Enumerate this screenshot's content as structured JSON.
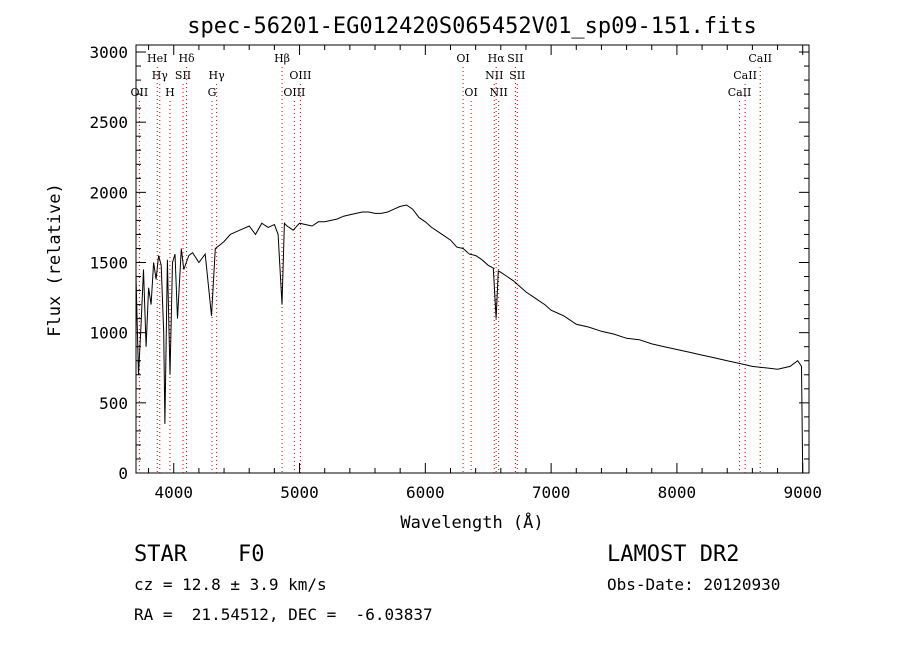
{
  "chart_data": {
    "type": "line",
    "title": "spec-56201-EG012420S065452V01_sp09-151.fits",
    "xlabel": "Wavelength (Å)",
    "ylabel": "Flux (relative)",
    "xlim": [
      3700,
      9050
    ],
    "ylim": [
      0,
      3050
    ],
    "x_ticks": [
      4000,
      5000,
      6000,
      7000,
      8000,
      9000
    ],
    "y_ticks": [
      0,
      500,
      1000,
      1500,
      2000,
      2500,
      3000
    ],
    "grid": false,
    "series": [
      {
        "x": [
          3700,
          3720,
          3740,
          3760,
          3780,
          3800,
          3820,
          3840,
          3860,
          3880,
          3900,
          3920,
          3930,
          3950,
          3970,
          3990,
          4010,
          4030,
          4060,
          4080,
          4100,
          4120,
          4150,
          4200,
          4250,
          4300,
          4330,
          4360,
          4400,
          4450,
          4500,
          4550,
          4600,
          4650,
          4700,
          4750,
          4800,
          4830,
          4861,
          4880,
          4900,
          4950,
          5000,
          5050,
          5100,
          5150,
          5200,
          5250,
          5300,
          5350,
          5400,
          5450,
          5500,
          5550,
          5600,
          5650,
          5700,
          5750,
          5800,
          5850,
          5900,
          5950,
          6000,
          6050,
          6100,
          6150,
          6200,
          6250,
          6300,
          6350,
          6400,
          6450,
          6500,
          6540,
          6563,
          6580,
          6600,
          6650,
          6700,
          6750,
          6800,
          6850,
          6900,
          6950,
          7000,
          7050,
          7100,
          7200,
          7300,
          7400,
          7500,
          7600,
          7700,
          7800,
          7900,
          8000,
          8100,
          8200,
          8300,
          8400,
          8500,
          8600,
          8700,
          8800,
          8900,
          8960,
          8990,
          9000
        ],
        "y": [
          1400,
          700,
          1050,
          1450,
          900,
          1320,
          1200,
          1500,
          1380,
          1550,
          1480,
          1000,
          350,
          1520,
          700,
          1500,
          1560,
          1100,
          1600,
          1450,
          1500,
          1550,
          1570,
          1500,
          1560,
          1120,
          1600,
          1620,
          1650,
          1700,
          1720,
          1740,
          1760,
          1700,
          1780,
          1750,
          1770,
          1700,
          1200,
          1780,
          1760,
          1730,
          1780,
          1770,
          1760,
          1790,
          1790,
          1800,
          1810,
          1830,
          1840,
          1850,
          1860,
          1860,
          1850,
          1850,
          1860,
          1880,
          1900,
          1910,
          1880,
          1820,
          1790,
          1750,
          1720,
          1690,
          1660,
          1610,
          1600,
          1560,
          1550,
          1520,
          1480,
          1460,
          1100,
          1440,
          1430,
          1400,
          1370,
          1330,
          1290,
          1260,
          1230,
          1200,
          1160,
          1140,
          1120,
          1060,
          1040,
          1010,
          990,
          960,
          950,
          920,
          900,
          880,
          860,
          840,
          820,
          800,
          780,
          760,
          750,
          740,
          760,
          800,
          760,
          0
        ]
      }
    ],
    "lines": [
      {
        "x": 3727,
        "label": "OII",
        "row": 2
      },
      {
        "x": 3869,
        "label": "HeI",
        "row": 0
      },
      {
        "x": 3889,
        "label": "Hγ",
        "row": 1
      },
      {
        "x": 3970,
        "label": "H",
        "row": 2
      },
      {
        "x": 4102,
        "label": "Hδ",
        "row": 0
      },
      {
        "x": 4074,
        "label": "SII",
        "row": 1
      },
      {
        "x": 4304,
        "label": "G",
        "row": 2
      },
      {
        "x": 4341,
        "label": "Hγ",
        "row": 1
      },
      {
        "x": 4861,
        "label": "Hβ",
        "row": 0
      },
      {
        "x": 4959,
        "label": "OIII",
        "row": 2
      },
      {
        "x": 5007,
        "label": "OIII",
        "row": 1
      },
      {
        "x": 6300,
        "label": "OI",
        "row": 0
      },
      {
        "x": 6364,
        "label": "OI",
        "row": 2
      },
      {
        "x": 6548,
        "label": "NII",
        "row": 1
      },
      {
        "x": 6563,
        "label": "Hα",
        "row": 0
      },
      {
        "x": 6583,
        "label": "NII",
        "row": 2
      },
      {
        "x": 6716,
        "label": "SII",
        "row": 0
      },
      {
        "x": 6731,
        "label": "SII",
        "row": 1
      },
      {
        "x": 8498,
        "label": "CaII",
        "row": 2
      },
      {
        "x": 8542,
        "label": "CaII",
        "row": 1
      },
      {
        "x": 8662,
        "label": "CaII",
        "row": 0
      }
    ]
  },
  "info": {
    "class_label": "STAR",
    "subclass_label": "F0",
    "survey": "LAMOST DR2",
    "redshift": "cz = 12.8 ± 3.9 km/s",
    "obs_date": "Obs-Date: 20120930",
    "coords": "RA =  21.54512, DEC =  -6.03837"
  }
}
